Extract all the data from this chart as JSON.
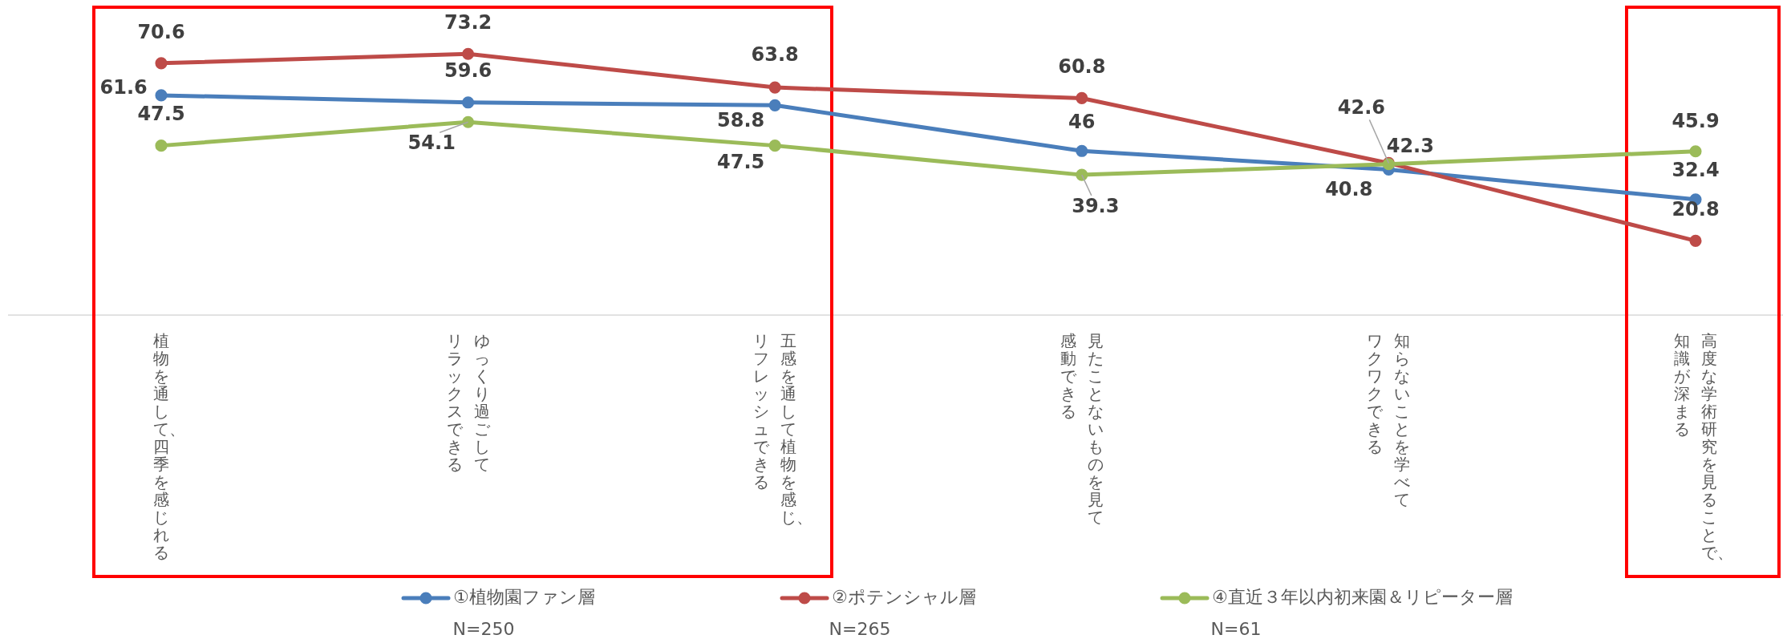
{
  "chart_data": {
    "type": "line",
    "categories": [
      "植物を通して、四季を感じれる",
      "ゆっくり過ごしてリラックスできる",
      "五感を通して植物を感じ、リフレッシュできる",
      "見たことないものを見て感動できる",
      "知らないことを学べてワクワクできる",
      "高度な学術研究を見ることで、知識が深まる"
    ],
    "series": [
      {
        "name": "①植物園ファン層",
        "color": "#4a7ebb",
        "values": [
          61.6,
          59.6,
          58.8,
          46,
          40.8,
          32.4
        ]
      },
      {
        "name": "②ポテンシャル層",
        "color": "#be4b48",
        "values": [
          70.6,
          73.2,
          63.8,
          60.8,
          42.6,
          20.8
        ]
      },
      {
        "name": "④直近３年以内初来園＆リピーター層",
        "color": "#9bbb59",
        "values": [
          47.5,
          54.1,
          47.5,
          39.3,
          42.3,
          45.9
        ]
      }
    ],
    "data_labels": true,
    "marker": "circle",
    "legend": "bottom",
    "annotations": [
      "N=250",
      "N=265",
      "N=61"
    ]
  }
}
